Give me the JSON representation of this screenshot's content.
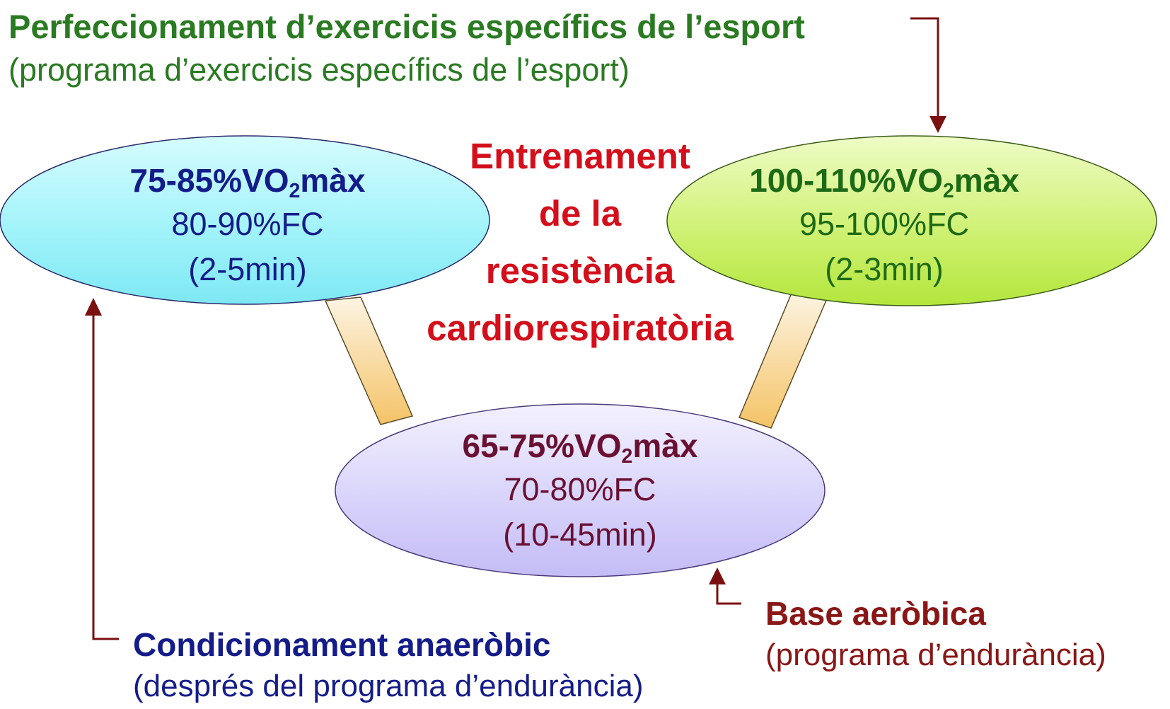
{
  "top_label": {
    "title": "Perfeccionament d’exercicis específics de l’esport",
    "subtitle": "(programa d’exercicis específics de l’esport)"
  },
  "center_title": {
    "line1": "Entrenament",
    "line2": "de la",
    "line3": "resistència",
    "line4": "cardiorespiratòria"
  },
  "nodes": {
    "left": {
      "vo2_prefix": "75-85%VO",
      "vo2_sub": "2",
      "vo2_suffix": "màx",
      "fc": "80-90%FC",
      "duration": "(2-5min)"
    },
    "right": {
      "vo2_prefix": "100-110%VO",
      "vo2_sub": "2",
      "vo2_suffix": "màx",
      "fc": "95-100%FC",
      "duration": "(2-3min)"
    },
    "bottom": {
      "vo2_prefix": "65-75%VO",
      "vo2_sub": "2",
      "vo2_suffix": "màx",
      "fc": "70-80%FC",
      "duration": "(10-45min)"
    }
  },
  "anaerobic_label": {
    "title": "Condicionament anaeròbic",
    "subtitle": "(després del programa d’endurància)"
  },
  "aerobic_label": {
    "title": "Base aeròbica",
    "subtitle": "(programa d’endurància)"
  },
  "colors": {
    "green_text": "#2a7a22",
    "red_title": "#d40f1b",
    "blue_text": "#141c8a",
    "dark_red_arrow": "#7a1010",
    "left_ellipse": "#9df2f8",
    "right_ellipse": "#ccf06e",
    "bottom_ellipse": "#d2cdf8",
    "connector": "#f5c878"
  }
}
